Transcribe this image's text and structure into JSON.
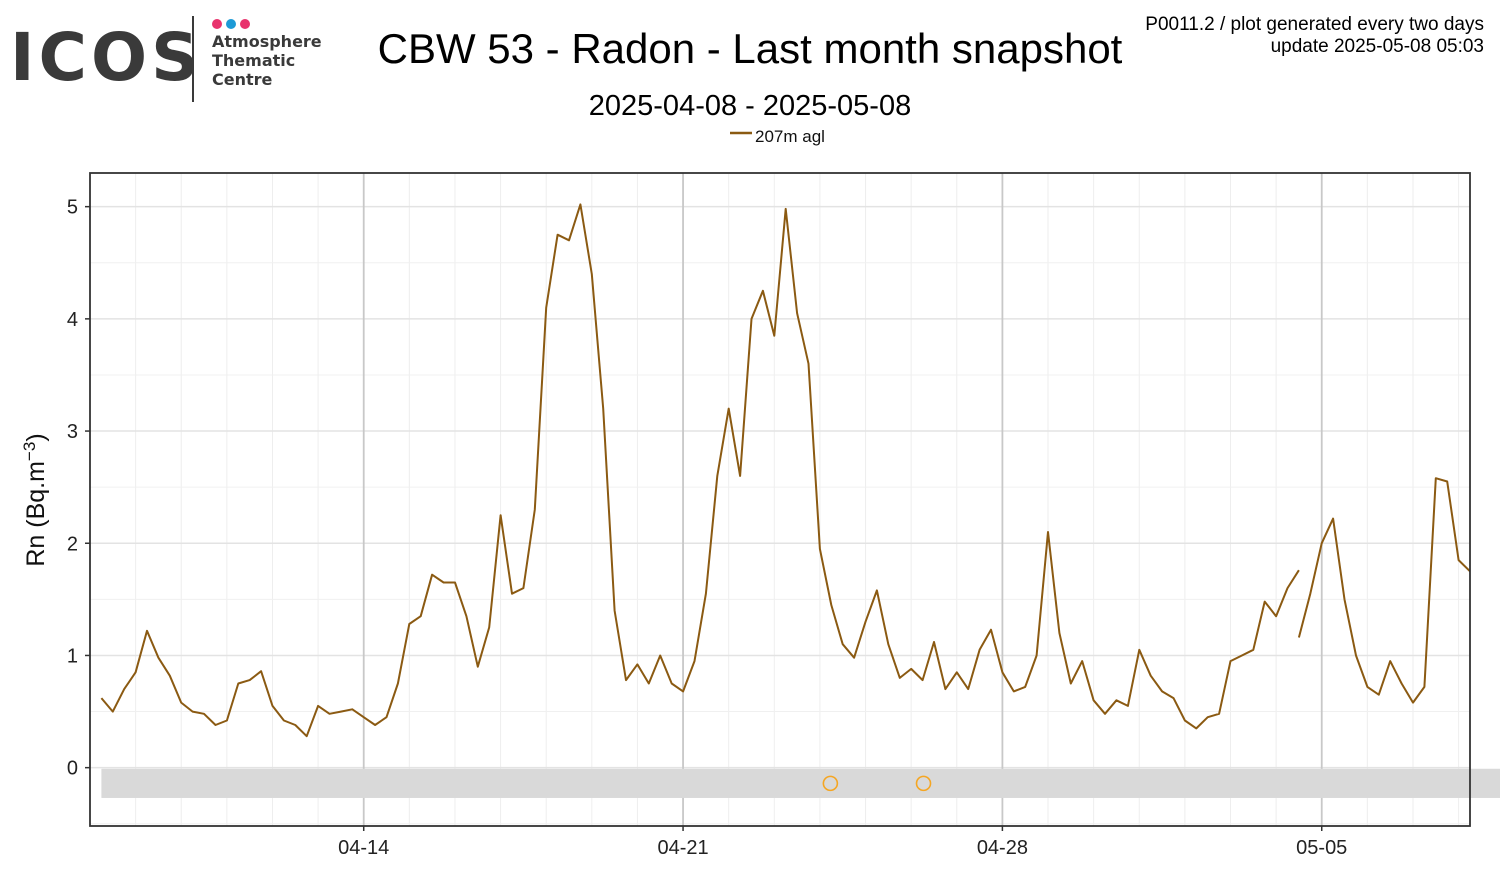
{
  "header": {
    "logo_text": "ICOS",
    "logo_lines": [
      "Atmosphere",
      "Thematic",
      "Centre"
    ],
    "logo_dot_colors": [
      "#e8336d",
      "#1c9ad6",
      "#e8336d"
    ],
    "corner_line1": "P0011.2 / plot generated every two days",
    "corner_line2": "update  2025-05-08 05:03"
  },
  "colors": {
    "series": "#8b5a12",
    "flag_marker": "#f5a623",
    "band": "#d9d9d9"
  },
  "chart_data": {
    "type": "line",
    "title": "CBW 53 - Radon - Last month snapshot",
    "subtitle": "2025-04-08 - 2025-05-08",
    "ylabel": "Rn (Bq.m^-3)",
    "ylabel_main": "Rn (Bq.m",
    "ylabel_sup": "−3",
    "ylabel_close": ")",
    "xlabel": "",
    "x_type": "date",
    "xlim": [
      "2025-04-08T00:00",
      "2025-05-08T06:00"
    ],
    "ylim": [
      -0.52,
      5.3
    ],
    "y_ticks": [
      0,
      1,
      2,
      3,
      4,
      5
    ],
    "x_ticks": [
      {
        "date": "2025-04-14",
        "label": "04-14"
      },
      {
        "date": "2025-04-21",
        "label": "04-21"
      },
      {
        "date": "2025-04-28",
        "label": "04-28"
      },
      {
        "date": "2025-05-05",
        "label": "05-05"
      }
    ],
    "grid": true,
    "legend_position": "top",
    "series": [
      {
        "name": "207m agl",
        "segments": [
          [
            [
              "2025-04-08T06:00",
              0.62
            ],
            [
              "2025-04-08T12:00",
              0.5
            ],
            [
              "2025-04-08T18:00",
              0.7
            ],
            [
              "2025-04-09T00:00",
              0.85
            ],
            [
              "2025-04-09T06:00",
              1.22
            ],
            [
              "2025-04-09T12:00",
              0.98
            ],
            [
              "2025-04-09T18:00",
              0.82
            ],
            [
              "2025-04-10T00:00",
              0.58
            ],
            [
              "2025-04-10T06:00",
              0.5
            ],
            [
              "2025-04-10T12:00",
              0.48
            ],
            [
              "2025-04-10T18:00",
              0.38
            ],
            [
              "2025-04-11T00:00",
              0.42
            ],
            [
              "2025-04-11T06:00",
              0.75
            ],
            [
              "2025-04-11T12:00",
              0.78
            ],
            [
              "2025-04-11T18:00",
              0.86
            ],
            [
              "2025-04-12T00:00",
              0.55
            ],
            [
              "2025-04-12T06:00",
              0.42
            ],
            [
              "2025-04-12T12:00",
              0.38
            ],
            [
              "2025-04-12T18:00",
              0.28
            ],
            [
              "2025-04-13T00:00",
              0.55
            ],
            [
              "2025-04-13T06:00",
              0.48
            ],
            [
              "2025-04-13T12:00",
              0.5
            ],
            [
              "2025-04-13T18:00",
              0.52
            ],
            [
              "2025-04-14T00:00",
              0.45
            ],
            [
              "2025-04-14T06:00",
              0.38
            ],
            [
              "2025-04-14T12:00",
              0.45
            ],
            [
              "2025-04-14T18:00",
              0.75
            ],
            [
              "2025-04-15T00:00",
              1.28
            ],
            [
              "2025-04-15T06:00",
              1.35
            ],
            [
              "2025-04-15T12:00",
              1.72
            ],
            [
              "2025-04-15T18:00",
              1.65
            ],
            [
              "2025-04-16T00:00",
              1.65
            ],
            [
              "2025-04-16T06:00",
              1.35
            ],
            [
              "2025-04-16T12:00",
              0.9
            ],
            [
              "2025-04-16T18:00",
              1.25
            ],
            [
              "2025-04-17T00:00",
              2.25
            ],
            [
              "2025-04-17T06:00",
              1.55
            ],
            [
              "2025-04-17T12:00",
              1.6
            ],
            [
              "2025-04-17T18:00",
              2.3
            ],
            [
              "2025-04-18T00:00",
              4.1
            ],
            [
              "2025-04-18T06:00",
              4.75
            ],
            [
              "2025-04-18T12:00",
              4.7
            ],
            [
              "2025-04-18T18:00",
              5.02
            ],
            [
              "2025-04-19T00:00",
              4.4
            ],
            [
              "2025-04-19T06:00",
              3.2
            ],
            [
              "2025-04-19T12:00",
              1.4
            ],
            [
              "2025-04-19T18:00",
              0.78
            ],
            [
              "2025-04-20T00:00",
              0.92
            ],
            [
              "2025-04-20T06:00",
              0.75
            ],
            [
              "2025-04-20T12:00",
              1.0
            ],
            [
              "2025-04-20T18:00",
              0.75
            ],
            [
              "2025-04-21T00:00",
              0.68
            ],
            [
              "2025-04-21T06:00",
              0.95
            ],
            [
              "2025-04-21T12:00",
              1.55
            ],
            [
              "2025-04-21T18:00",
              2.6
            ],
            [
              "2025-04-22T00:00",
              3.2
            ],
            [
              "2025-04-22T06:00",
              2.6
            ],
            [
              "2025-04-22T12:00",
              4.0
            ],
            [
              "2025-04-22T18:00",
              4.25
            ],
            [
              "2025-04-23T00:00",
              3.85
            ],
            [
              "2025-04-23T06:00",
              4.98
            ],
            [
              "2025-04-23T12:00",
              4.05
            ],
            [
              "2025-04-23T18:00",
              3.6
            ],
            [
              "2025-04-24T00:00",
              1.95
            ],
            [
              "2025-04-24T06:00",
              1.45
            ],
            [
              "2025-04-24T12:00",
              1.1
            ],
            [
              "2025-04-24T18:00",
              0.98
            ],
            [
              "2025-04-25T00:00",
              1.3
            ],
            [
              "2025-04-25T06:00",
              1.58
            ],
            [
              "2025-04-25T12:00",
              1.1
            ],
            [
              "2025-04-25T18:00",
              0.8
            ],
            [
              "2025-04-26T00:00",
              0.88
            ],
            [
              "2025-04-26T06:00",
              0.78
            ],
            [
              "2025-04-26T12:00",
              1.12
            ],
            [
              "2025-04-26T18:00",
              0.7
            ],
            [
              "2025-04-27T00:00",
              0.85
            ],
            [
              "2025-04-27T06:00",
              0.7
            ],
            [
              "2025-04-27T12:00",
              1.05
            ],
            [
              "2025-04-27T18:00",
              1.23
            ],
            [
              "2025-04-28T00:00",
              0.85
            ],
            [
              "2025-04-28T06:00",
              0.68
            ],
            [
              "2025-04-28T12:00",
              0.72
            ],
            [
              "2025-04-28T18:00",
              1.0
            ],
            [
              "2025-04-29T00:00",
              2.1
            ],
            [
              "2025-04-29T06:00",
              1.2
            ],
            [
              "2025-04-29T12:00",
              0.75
            ],
            [
              "2025-04-29T18:00",
              0.95
            ],
            [
              "2025-04-30T00:00",
              0.6
            ],
            [
              "2025-04-30T06:00",
              0.48
            ],
            [
              "2025-04-30T12:00",
              0.6
            ],
            [
              "2025-04-30T18:00",
              0.55
            ],
            [
              "2025-05-01T00:00",
              1.05
            ],
            [
              "2025-05-01T06:00",
              0.82
            ],
            [
              "2025-05-01T12:00",
              0.68
            ],
            [
              "2025-05-01T18:00",
              0.62
            ],
            [
              "2025-05-02T00:00",
              0.42
            ],
            [
              "2025-05-02T06:00",
              0.35
            ],
            [
              "2025-05-02T12:00",
              0.45
            ],
            [
              "2025-05-02T18:00",
              0.48
            ],
            [
              "2025-05-03T00:00",
              0.95
            ],
            [
              "2025-05-03T06:00",
              1.0
            ],
            [
              "2025-05-03T12:00",
              1.05
            ],
            [
              "2025-05-03T18:00",
              1.48
            ],
            [
              "2025-05-04T00:00",
              1.35
            ],
            [
              "2025-05-04T06:00",
              1.6
            ],
            [
              "2025-05-04T12:00",
              1.76
            ]
          ],
          [
            [
              "2025-05-04T12:00",
              1.16
            ],
            [
              "2025-05-04T18:00",
              1.55
            ],
            [
              "2025-05-05T00:00",
              2.0
            ],
            [
              "2025-05-05T06:00",
              2.22
            ],
            [
              "2025-05-05T12:00",
              1.5
            ],
            [
              "2025-05-05T18:00",
              1.0
            ],
            [
              "2025-05-06T00:00",
              0.72
            ],
            [
              "2025-05-06T06:00",
              0.65
            ],
            [
              "2025-05-06T12:00",
              0.95
            ],
            [
              "2025-05-06T18:00",
              0.75
            ],
            [
              "2025-05-07T00:00",
              0.58
            ],
            [
              "2025-05-07T06:00",
              0.72
            ],
            [
              "2025-05-07T12:00",
              2.58
            ],
            [
              "2025-05-07T18:00",
              2.55
            ],
            [
              "2025-05-08T00:00",
              1.85
            ],
            [
              "2025-05-08T06:00",
              1.75
            ]
          ]
        ]
      }
    ],
    "flag_markers": [
      {
        "x": "2025-04-24T05:30",
        "y": -0.14
      },
      {
        "x": "2025-04-26T06:30",
        "y": -0.14
      }
    ],
    "band": {
      "y_min": -0.27,
      "y_max": -0.01
    }
  }
}
